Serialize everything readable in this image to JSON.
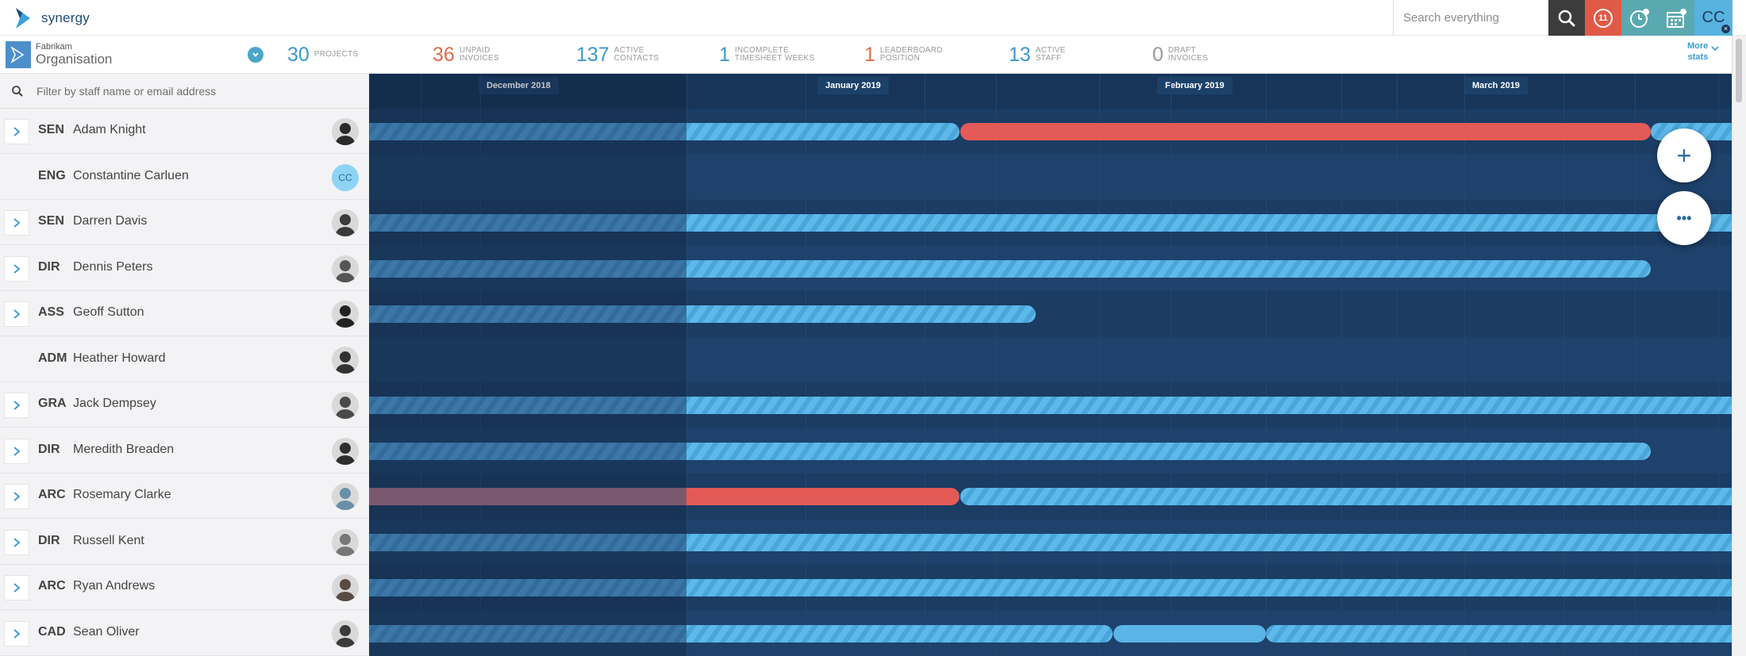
{
  "app": {
    "name": "synergy"
  },
  "topbar": {
    "search_placeholder": "Search everything",
    "alert_count": "11",
    "user_initials": "CC"
  },
  "org": {
    "small": "Fabrikam",
    "big": "Organisation"
  },
  "stats": [
    {
      "num": "30",
      "l1": "PROJECTS",
      "l2": "",
      "color": "#3c98cf"
    },
    {
      "num": "36",
      "l1": "UNPAID",
      "l2": "INVOICES",
      "color": "#e06b4a"
    },
    {
      "num": "137",
      "l1": "ACTIVE",
      "l2": "CONTACTS",
      "color": "#3c98cf"
    },
    {
      "num": "1",
      "l1": "INCOMPLETE",
      "l2": "TIMESHEET WEEKS",
      "color": "#3c98cf"
    },
    {
      "num": "1",
      "l1": "LEADERBOARD",
      "l2": "POSITION",
      "color": "#e06b4a"
    },
    {
      "num": "13",
      "l1": "ACTIVE",
      "l2": "STAFF",
      "color": "#3c98cf"
    },
    {
      "num": "0",
      "l1": "DRAFT",
      "l2": "INVOICES",
      "color": "#999999"
    }
  ],
  "more_stats": {
    "l1": "More",
    "l2": "stats"
  },
  "filter_placeholder": "Filter by staff name or email address",
  "months": [
    "December 2018",
    "January 2019",
    "February 2019",
    "March 2019"
  ],
  "staff": [
    {
      "code": "SEN",
      "name": "Adam Knight",
      "expandable": true,
      "avatar": "photo"
    },
    {
      "code": "ENG",
      "name": "Constantine Carluen",
      "expandable": false,
      "avatar": "CC"
    },
    {
      "code": "SEN",
      "name": "Darren Davis",
      "expandable": true,
      "avatar": "photo"
    },
    {
      "code": "DIR",
      "name": "Dennis Peters",
      "expandable": true,
      "avatar": "photo"
    },
    {
      "code": "ASS",
      "name": "Geoff Sutton",
      "expandable": true,
      "avatar": "photo"
    },
    {
      "code": "ADM",
      "name": "Heather Howard",
      "expandable": false,
      "avatar": "photo"
    },
    {
      "code": "GRA",
      "name": "Jack Dempsey",
      "expandable": true,
      "avatar": "photo"
    },
    {
      "code": "DIR",
      "name": "Meredith Breaden",
      "expandable": true,
      "avatar": "photo"
    },
    {
      "code": "ARC",
      "name": "Rosemary Clarke",
      "expandable": true,
      "avatar": "photo"
    },
    {
      "code": "DIR",
      "name": "Russell Kent",
      "expandable": true,
      "avatar": "photo"
    },
    {
      "code": "ARC",
      "name": "Ryan Andrews",
      "expandable": true,
      "avatar": "photo"
    },
    {
      "code": "CAD",
      "name": "Sean Oliver",
      "expandable": true,
      "avatar": "photo"
    }
  ],
  "colors": {
    "timeline_bg": "#1b3c63",
    "bar_blue": "#5db9ea",
    "bar_red": "#e45a57",
    "accent": "#3c98cf"
  }
}
